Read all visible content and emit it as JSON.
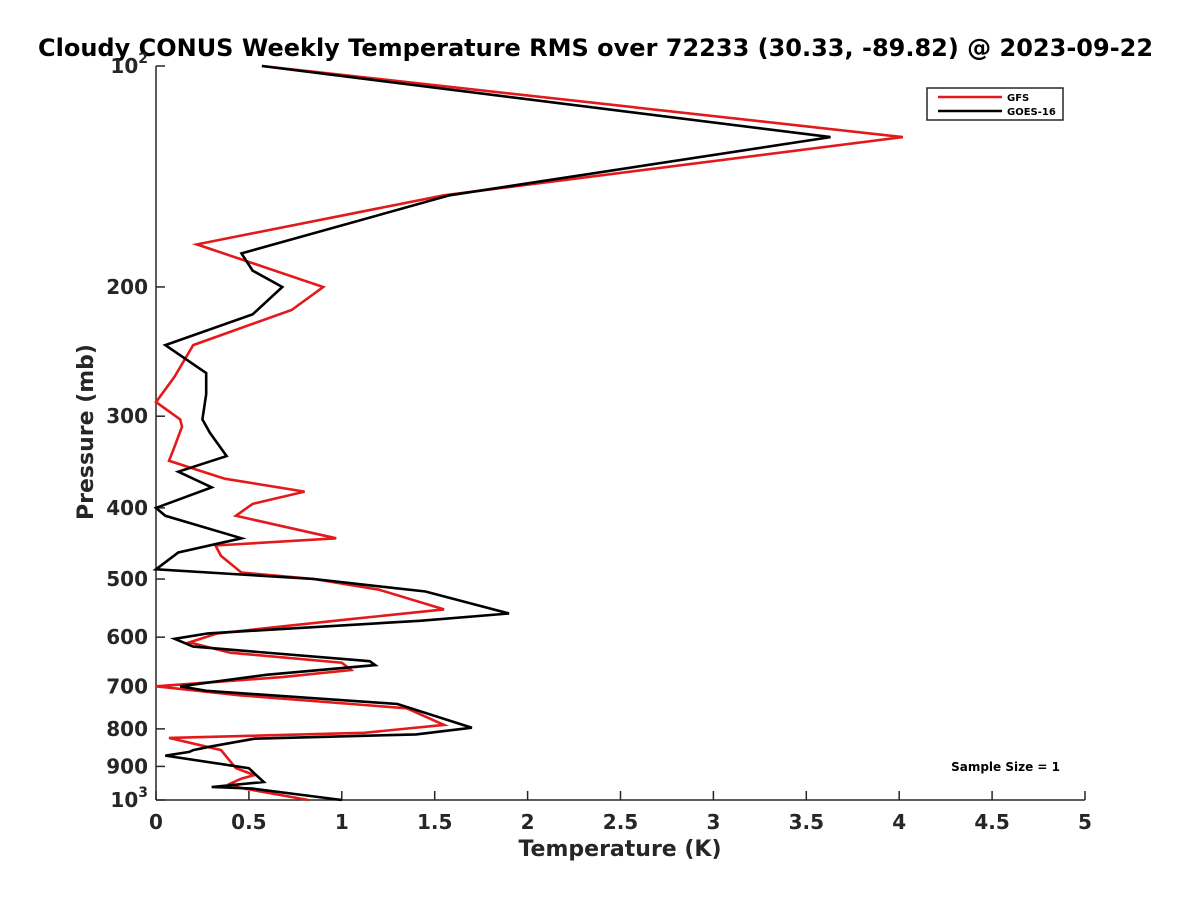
{
  "chart_data": {
    "type": "line",
    "title": "Cloudy CONUS Weekly Temperature RMS over 72233 (30.33, -89.82) @ 2023-09-22",
    "xlabel": "Temperature (K)",
    "ylabel": "Pressure (mb)",
    "xlim": [
      0,
      5
    ],
    "ylim": [
      100,
      1000
    ],
    "yscale": "log",
    "y_reversed": true,
    "xticks": [
      "0",
      "0.5",
      "1",
      "1.5",
      "2",
      "2.5",
      "3",
      "3.5",
      "4",
      "4.5",
      "5"
    ],
    "yticks": [
      {
        "value": 100,
        "base": "10",
        "exp": "2"
      },
      {
        "value": 200,
        "label": "200"
      },
      {
        "value": 300,
        "label": "300"
      },
      {
        "value": 400,
        "label": "400"
      },
      {
        "value": 500,
        "label": "500"
      },
      {
        "value": 600,
        "label": "600"
      },
      {
        "value": 700,
        "label": "700"
      },
      {
        "value": 800,
        "label": "800"
      },
      {
        "value": 900,
        "label": "900"
      },
      {
        "value": 1000,
        "base": "10",
        "exp": "3"
      }
    ],
    "legend_position": "top-right",
    "grid": false,
    "annotation": "Sample Size = 1",
    "series": [
      {
        "name": "GFS",
        "color": "#e31a1c",
        "points": [
          [
            0.57,
            100
          ],
          [
            4.02,
            125
          ],
          [
            1.55,
            150
          ],
          [
            0.22,
            175
          ],
          [
            0.9,
            200
          ],
          [
            0.73,
            215
          ],
          [
            0.2,
            240
          ],
          [
            0.1,
            265
          ],
          [
            0.0,
            287
          ],
          [
            0.13,
            303
          ],
          [
            0.14,
            310
          ],
          [
            0.1,
            330
          ],
          [
            0.07,
            345
          ],
          [
            0.37,
            365
          ],
          [
            0.8,
            380
          ],
          [
            0.52,
            395
          ],
          [
            0.43,
            410
          ],
          [
            0.97,
            440
          ],
          [
            0.32,
            450
          ],
          [
            0.35,
            465
          ],
          [
            0.46,
            490
          ],
          [
            0.85,
            500
          ],
          [
            1.2,
            517
          ],
          [
            1.55,
            550
          ],
          [
            1.05,
            567
          ],
          [
            0.33,
            593
          ],
          [
            0.18,
            610
          ],
          [
            0.4,
            630
          ],
          [
            1.0,
            650
          ],
          [
            1.05,
            665
          ],
          [
            0.68,
            680
          ],
          [
            0.0,
            700
          ],
          [
            0.45,
            720
          ],
          [
            1.35,
            750
          ],
          [
            1.55,
            790
          ],
          [
            1.12,
            810
          ],
          [
            0.07,
            823
          ],
          [
            0.35,
            855
          ],
          [
            0.43,
            905
          ],
          [
            0.53,
            925
          ],
          [
            0.46,
            935
          ],
          [
            0.4,
            950
          ],
          [
            0.45,
            962
          ],
          [
            0.82,
            1000
          ]
        ]
      },
      {
        "name": "GOES-16",
        "color": "#000000",
        "points": [
          [
            0.57,
            100
          ],
          [
            3.63,
            125
          ],
          [
            1.58,
            150
          ],
          [
            0.46,
            180
          ],
          [
            0.52,
            190
          ],
          [
            0.68,
            200
          ],
          [
            0.52,
            218
          ],
          [
            0.05,
            240
          ],
          [
            0.27,
            262
          ],
          [
            0.27,
            280
          ],
          [
            0.25,
            303
          ],
          [
            0.29,
            316
          ],
          [
            0.38,
            340
          ],
          [
            0.12,
            357
          ],
          [
            0.3,
            375
          ],
          [
            0.0,
            400
          ],
          [
            0.05,
            410
          ],
          [
            0.46,
            440
          ],
          [
            0.12,
            460
          ],
          [
            0.0,
            485
          ],
          [
            0.85,
            500
          ],
          [
            1.45,
            520
          ],
          [
            1.9,
            557
          ],
          [
            1.42,
            570
          ],
          [
            0.28,
            593
          ],
          [
            0.1,
            603
          ],
          [
            0.2,
            618
          ],
          [
            1.15,
            647
          ],
          [
            1.18,
            655
          ],
          [
            0.6,
            675
          ],
          [
            0.13,
            700
          ],
          [
            0.27,
            710
          ],
          [
            1.3,
            740
          ],
          [
            1.7,
            797
          ],
          [
            1.4,
            814
          ],
          [
            0.53,
            825
          ],
          [
            0.3,
            845
          ],
          [
            0.2,
            855
          ],
          [
            0.18,
            860
          ],
          [
            0.05,
            870
          ],
          [
            0.5,
            905
          ],
          [
            0.55,
            930
          ],
          [
            0.58,
            945
          ],
          [
            0.3,
            960
          ],
          [
            0.52,
            965
          ],
          [
            1.0,
            1000
          ]
        ]
      }
    ]
  }
}
